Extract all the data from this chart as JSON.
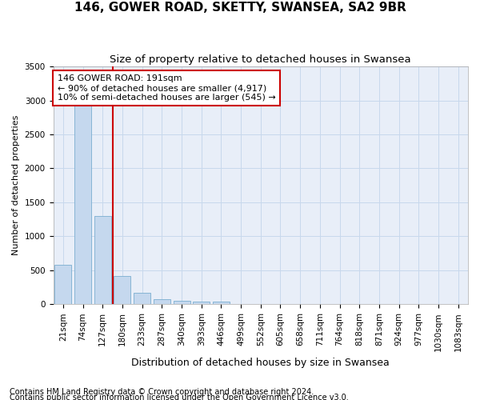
{
  "title": "146, GOWER ROAD, SKETTY, SWANSEA, SA2 9BR",
  "subtitle": "Size of property relative to detached houses in Swansea",
  "xlabel": "Distribution of detached houses by size in Swansea",
  "ylabel": "Number of detached properties",
  "footnote1": "Contains HM Land Registry data © Crown copyright and database right 2024.",
  "footnote2": "Contains public sector information licensed under the Open Government Licence v3.0.",
  "categories": [
    "21sqm",
    "74sqm",
    "127sqm",
    "180sqm",
    "233sqm",
    "287sqm",
    "340sqm",
    "393sqm",
    "446sqm",
    "499sqm",
    "552sqm",
    "605sqm",
    "658sqm",
    "711sqm",
    "764sqm",
    "818sqm",
    "871sqm",
    "924sqm",
    "977sqm",
    "1030sqm",
    "1083sqm"
  ],
  "values": [
    575,
    2920,
    1300,
    415,
    165,
    80,
    52,
    42,
    38,
    0,
    0,
    0,
    0,
    0,
    0,
    0,
    0,
    0,
    0,
    0,
    0
  ],
  "bar_color": "#c5d8ee",
  "bar_edge_color": "#7aaed0",
  "grid_color": "#c8d8ec",
  "background_color": "#e8eef8",
  "ylim_max": 3500,
  "yticks": [
    0,
    500,
    1000,
    1500,
    2000,
    2500,
    3000,
    3500
  ],
  "property_line_color": "#cc0000",
  "property_bar_index": 3,
  "annotation_text": "146 GOWER ROAD: 191sqm\n← 90% of detached houses are smaller (4,917)\n10% of semi-detached houses are larger (545) →",
  "title_fontsize": 11,
  "subtitle_fontsize": 9.5,
  "xlabel_fontsize": 9,
  "ylabel_fontsize": 8,
  "tick_fontsize": 7.5,
  "footnote_fontsize": 7,
  "ann_fontsize": 8
}
